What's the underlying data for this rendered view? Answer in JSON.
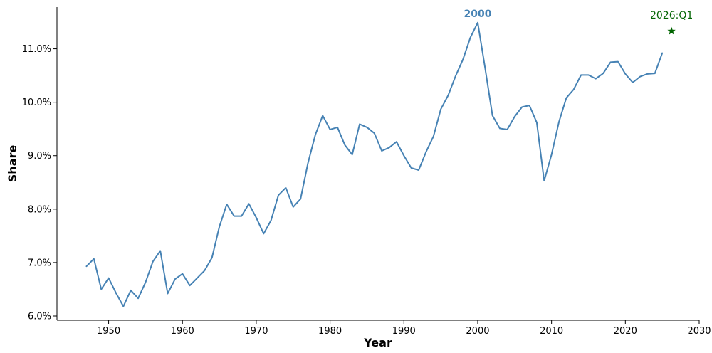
{
  "chart_data": {
    "type": "line",
    "xlabel": "Year",
    "ylabel": "Share",
    "xlim": [
      1943,
      2030
    ],
    "ylim": [
      5.92,
      11.78
    ],
    "xticks": [
      1950,
      1960,
      1970,
      1980,
      1990,
      2000,
      2010,
      2020,
      2030
    ],
    "yticks": [
      6.0,
      7.0,
      8.0,
      9.0,
      10.0,
      11.0
    ],
    "ytick_labels": [
      "6.0%",
      "7.0%",
      "8.0%",
      "9.0%",
      "10.0%",
      "11.0%"
    ],
    "grid": false,
    "series": [
      {
        "color": "#4682b4",
        "x": [
          1947,
          1948,
          1949,
          1950,
          1951,
          1952,
          1953,
          1954,
          1955,
          1956,
          1957,
          1958,
          1959,
          1960,
          1961,
          1962,
          1963,
          1964,
          1965,
          1966,
          1967,
          1968,
          1969,
          1970,
          1971,
          1972,
          1973,
          1974,
          1975,
          1976,
          1977,
          1978,
          1979,
          1980,
          1981,
          1982,
          1983,
          1984,
          1985,
          1986,
          1987,
          1988,
          1989,
          1990,
          1991,
          1992,
          1993,
          1994,
          1995,
          1996,
          1997,
          1998,
          1999,
          2000,
          2001,
          2002,
          2003,
          2004,
          2005,
          2006,
          2007,
          2008,
          2009,
          2010,
          2011,
          2012,
          2013,
          2014,
          2015,
          2016,
          2017,
          2018,
          2019,
          2020,
          2021,
          2022,
          2023,
          2024,
          2025
        ],
        "values": [
          6.93,
          7.07,
          6.5,
          6.71,
          6.43,
          6.18,
          6.48,
          6.33,
          6.63,
          7.02,
          7.22,
          6.42,
          6.69,
          6.79,
          6.57,
          6.71,
          6.85,
          7.09,
          7.67,
          8.09,
          7.87,
          7.87,
          8.1,
          7.84,
          7.54,
          7.79,
          8.26,
          8.4,
          8.04,
          8.19,
          8.86,
          9.39,
          9.75,
          9.49,
          9.53,
          9.2,
          9.02,
          9.59,
          9.53,
          9.42,
          9.09,
          9.15,
          9.26,
          9.0,
          8.77,
          8.73,
          9.07,
          9.36,
          9.87,
          10.13,
          10.49,
          10.8,
          11.21,
          11.49,
          10.64,
          9.75,
          9.51,
          9.49,
          9.73,
          9.91,
          9.94,
          9.62,
          8.53,
          9.02,
          9.63,
          10.08,
          10.24,
          10.51,
          10.51,
          10.44,
          10.54,
          10.75,
          10.76,
          10.53,
          10.37,
          10.48,
          10.53,
          10.54,
          10.92
        ]
      }
    ],
    "peak_annotation": {
      "x": 2000,
      "y": 11.49,
      "label": "2000",
      "color": "#4682b4"
    },
    "forecast_point": {
      "x": 2026.25,
      "y": 11.33,
      "label": "2026:Q1",
      "marker": "star",
      "color": "#006400"
    }
  }
}
